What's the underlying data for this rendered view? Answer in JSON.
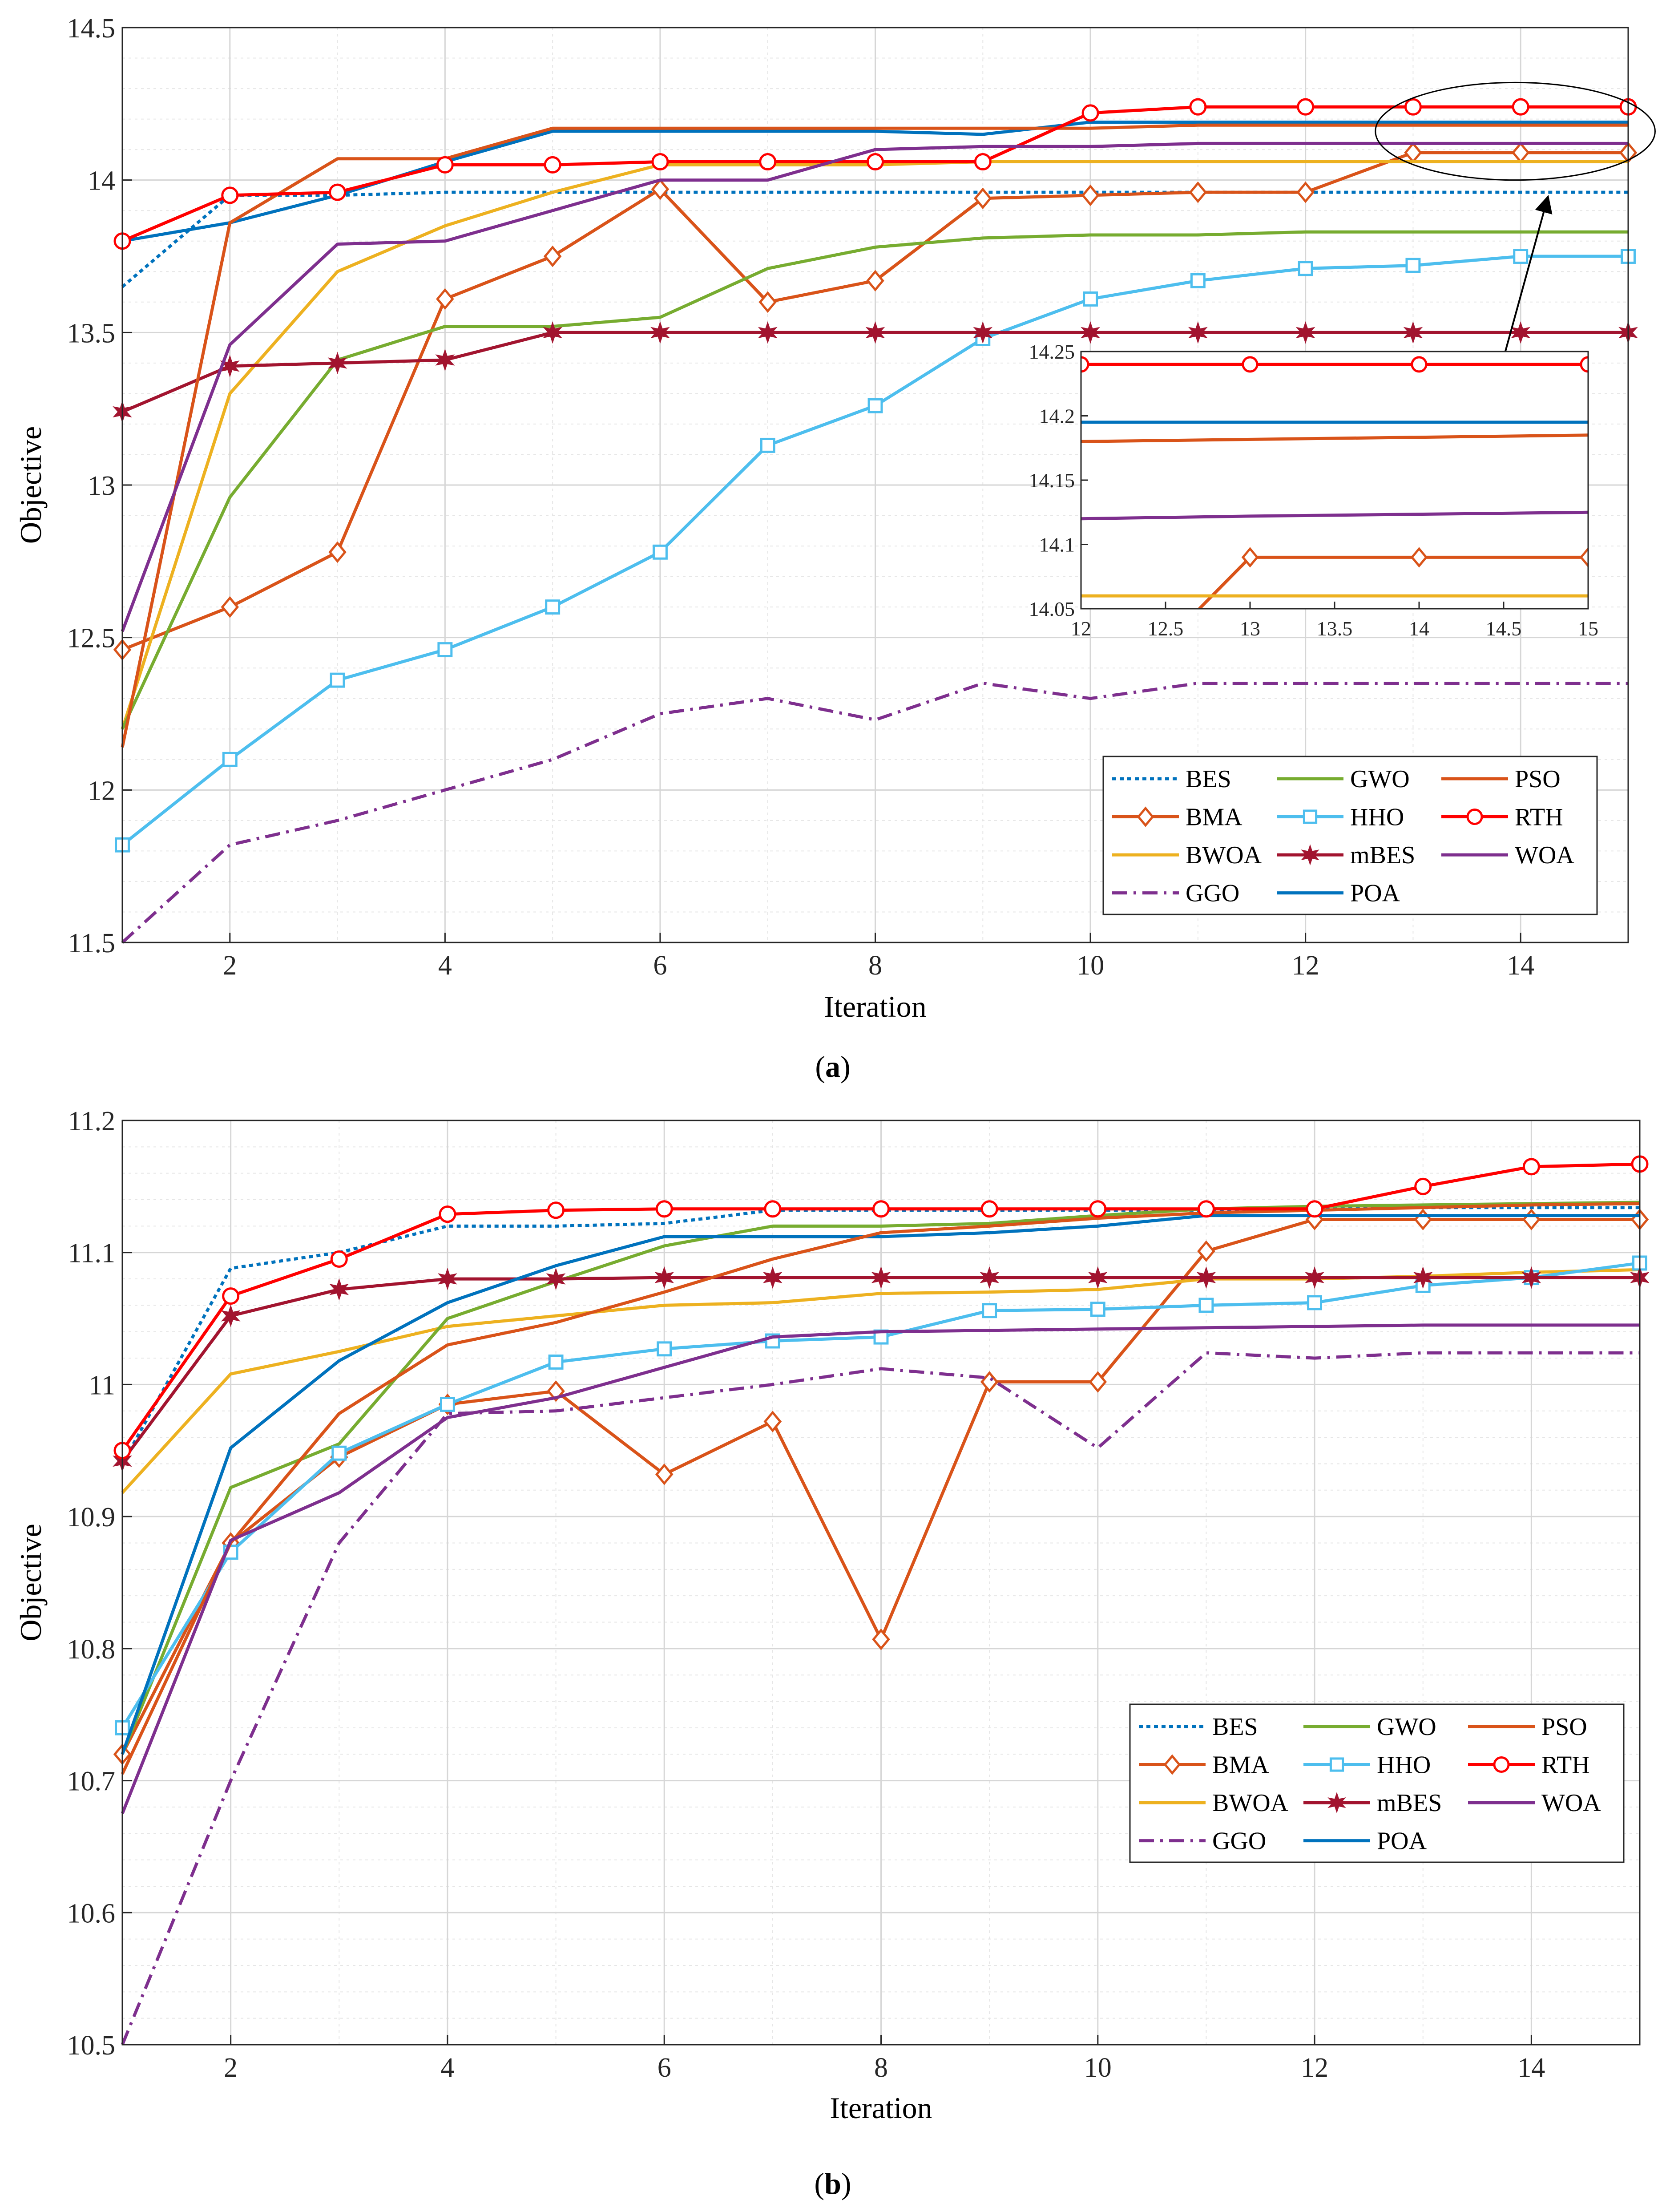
{
  "chart_data": [
    {
      "type": "line",
      "id": "a",
      "caption_open": "(",
      "caption_letter": "a",
      "caption_close": ")",
      "xlabel": "Iteration",
      "ylabel": "Objective",
      "xlim": [
        1,
        15
      ],
      "ylim": [
        11.5,
        14.5
      ],
      "xticks": [
        2,
        4,
        6,
        8,
        10,
        12,
        14
      ],
      "yticks": [
        11.5,
        12,
        12.5,
        13,
        13.5,
        14,
        14.5
      ],
      "ytick_labels": [
        "11.5",
        "12",
        "12.5",
        "13",
        "13.5",
        "14",
        "14.5"
      ],
      "x": [
        1,
        2,
        3,
        4,
        5,
        6,
        7,
        8,
        9,
        10,
        11,
        12,
        13,
        14,
        15
      ],
      "series": [
        {
          "name": "BES",
          "color": "#0072BD",
          "dash": "dot",
          "marker": "none",
          "values": [
            13.65,
            13.95,
            13.95,
            13.96,
            13.96,
            13.96,
            13.96,
            13.96,
            13.96,
            13.96,
            13.96,
            13.96,
            13.96,
            13.96,
            13.96
          ]
        },
        {
          "name": "BMA",
          "color": "#D95319",
          "dash": "solid",
          "marker": "diamond",
          "values": [
            12.46,
            12.6,
            12.78,
            13.61,
            13.75,
            13.97,
            13.6,
            13.67,
            13.94,
            13.95,
            13.96,
            13.96,
            14.09,
            14.09,
            14.09
          ]
        },
        {
          "name": "BWOA",
          "color": "#EDB120",
          "dash": "solid",
          "marker": "none",
          "values": [
            12.2,
            13.3,
            13.7,
            13.85,
            13.96,
            14.05,
            14.05,
            14.05,
            14.06,
            14.06,
            14.06,
            14.06,
            14.06,
            14.06,
            14.06
          ]
        },
        {
          "name": "GGO",
          "color": "#7E2F8E",
          "dash": "dashdot",
          "marker": "none",
          "values": [
            11.5,
            11.82,
            11.9,
            12.0,
            12.1,
            12.25,
            12.3,
            12.23,
            12.35,
            12.3,
            12.35,
            12.35,
            12.35,
            12.35,
            12.35
          ]
        },
        {
          "name": "GWO",
          "color": "#77AC30",
          "dash": "solid",
          "marker": "none",
          "values": [
            12.2,
            12.96,
            13.41,
            13.52,
            13.52,
            13.55,
            13.71,
            13.78,
            13.81,
            13.82,
            13.82,
            13.83,
            13.83,
            13.83,
            13.83
          ]
        },
        {
          "name": "HHO",
          "color": "#4DBEEE",
          "dash": "solid",
          "marker": "square",
          "values": [
            11.82,
            12.1,
            12.36,
            12.46,
            12.6,
            12.78,
            13.13,
            13.26,
            13.48,
            13.61,
            13.67,
            13.71,
            13.72,
            13.75,
            13.75
          ]
        },
        {
          "name": "mBES",
          "color": "#A2142F",
          "dash": "solid",
          "marker": "star",
          "values": [
            13.24,
            13.39,
            13.4,
            13.41,
            13.5,
            13.5,
            13.5,
            13.5,
            13.5,
            13.5,
            13.5,
            13.5,
            13.5,
            13.5,
            13.5
          ]
        },
        {
          "name": "POA",
          "color": "#0072BD",
          "dash": "solid",
          "marker": "none",
          "values": [
            13.8,
            13.86,
            13.95,
            14.06,
            14.16,
            14.16,
            14.16,
            14.16,
            14.15,
            14.19,
            14.19,
            14.19,
            14.19,
            14.19,
            14.19
          ]
        },
        {
          "name": "PSO",
          "color": "#D95319",
          "dash": "solid",
          "marker": "none",
          "values": [
            12.14,
            13.86,
            14.07,
            14.07,
            14.17,
            14.17,
            14.17,
            14.17,
            14.17,
            14.17,
            14.18,
            14.18,
            14.18,
            14.18,
            14.18
          ]
        },
        {
          "name": "RTH",
          "color": "#FF0000",
          "dash": "solid",
          "marker": "circle",
          "values": [
            13.8,
            13.95,
            13.96,
            14.05,
            14.05,
            14.06,
            14.06,
            14.06,
            14.06,
            14.22,
            14.24,
            14.24,
            14.24,
            14.24,
            14.24
          ]
        },
        {
          "name": "WOA",
          "color": "#7E2F8E",
          "dash": "solid",
          "marker": "none",
          "values": [
            12.52,
            13.46,
            13.79,
            13.8,
            13.9,
            14.0,
            14.0,
            14.1,
            14.11,
            14.11,
            14.12,
            14.12,
            14.12,
            14.12,
            14.12
          ]
        }
      ],
      "legend": {
        "location": "bottom-right",
        "columns": 3,
        "order": [
          "BES",
          "GWO",
          "PSO",
          "BMA",
          "HHO",
          "RTH",
          "BWOA",
          "mBES",
          "WOA",
          "GGO",
          "POA"
        ]
      },
      "inset": {
        "xlim": [
          12,
          15
        ],
        "ylim": [
          14.05,
          14.25
        ],
        "xticks": [
          12,
          12.5,
          13,
          13.5,
          14,
          14.5,
          15
        ],
        "xtick_labels": [
          "12",
          "12.5",
          "13",
          "13.5",
          "14",
          "14.5",
          "15"
        ],
        "yticks": [
          14.05,
          14.1,
          14.15,
          14.2,
          14.25
        ],
        "ytick_labels": [
          "14.05",
          "14.1",
          "14.15",
          "14.2",
          "14.25"
        ],
        "series": [
          {
            "name": "RTH",
            "color": "#FF0000",
            "marker": "circle",
            "x": [
              12,
              13,
              14,
              15
            ],
            "values": [
              14.24,
              14.24,
              14.24,
              14.24
            ]
          },
          {
            "name": "POA",
            "color": "#0072BD",
            "marker": "none",
            "x": [
              12,
              15
            ],
            "values": [
              14.195,
              14.195
            ]
          },
          {
            "name": "PSO",
            "color": "#D95319",
            "marker": "none",
            "x": [
              12,
              15
            ],
            "values": [
              14.18,
              14.185
            ]
          },
          {
            "name": "WOA",
            "color": "#7E2F8E",
            "marker": "none",
            "x": [
              12,
              13,
              15
            ],
            "values": [
              14.12,
              14.122,
              14.125
            ]
          },
          {
            "name": "BMA",
            "color": "#D95319",
            "marker": "diamond",
            "x": [
              12.7,
              13,
              14,
              15
            ],
            "values": [
              14.05,
              14.09,
              14.09,
              14.09
            ]
          },
          {
            "name": "BWOA",
            "color": "#EDB120",
            "marker": "none",
            "x": [
              12,
              15
            ],
            "values": [
              14.06,
              14.06
            ]
          }
        ]
      }
    },
    {
      "type": "line",
      "id": "b",
      "caption_open": "(",
      "caption_letter": "b",
      "caption_close": ")",
      "xlabel": "Iteration",
      "ylabel": "Objective",
      "xlim": [
        1,
        15
      ],
      "ylim": [
        10.5,
        11.2
      ],
      "xticks": [
        2,
        4,
        6,
        8,
        10,
        12,
        14
      ],
      "yticks": [
        10.5,
        10.6,
        10.7,
        10.8,
        10.9,
        11,
        11.1,
        11.2
      ],
      "ytick_labels": [
        "10.5",
        "10.6",
        "10.7",
        "10.8",
        "10.9",
        "11",
        "11.1",
        "11.2"
      ],
      "x": [
        1,
        2,
        3,
        4,
        5,
        6,
        7,
        8,
        9,
        10,
        11,
        12,
        13,
        14,
        15
      ],
      "series": [
        {
          "name": "BES",
          "color": "#0072BD",
          "dash": "dot",
          "marker": "none",
          "values": [
            10.94,
            11.088,
            11.1,
            11.12,
            11.12,
            11.122,
            11.132,
            11.132,
            11.132,
            11.132,
            11.132,
            11.134,
            11.134,
            11.134,
            11.134
          ]
        },
        {
          "name": "BMA",
          "color": "#D95319",
          "dash": "solid",
          "marker": "diamond",
          "values": [
            10.72,
            10.88,
            10.945,
            10.985,
            10.995,
            10.932,
            10.972,
            10.807,
            11.002,
            11.002,
            11.101,
            11.125,
            11.125,
            11.125,
            11.125
          ]
        },
        {
          "name": "BWOA",
          "color": "#EDB120",
          "dash": "solid",
          "marker": "none",
          "values": [
            10.918,
            11.008,
            11.025,
            11.044,
            11.052,
            11.06,
            11.062,
            11.069,
            11.07,
            11.072,
            11.08,
            11.08,
            11.082,
            11.085,
            11.087
          ]
        },
        {
          "name": "GGO",
          "color": "#7E2F8E",
          "dash": "dashdot",
          "marker": "none",
          "values": [
            10.5,
            10.7,
            10.88,
            10.978,
            10.98,
            10.99,
            11.0,
            11.012,
            11.005,
            10.952,
            11.024,
            11.02,
            11.024,
            11.024,
            11.024
          ]
        },
        {
          "name": "GWO",
          "color": "#77AC30",
          "dash": "solid",
          "marker": "none",
          "values": [
            10.72,
            10.922,
            10.955,
            11.05,
            11.078,
            11.105,
            11.12,
            11.12,
            11.122,
            11.128,
            11.133,
            11.135,
            11.136,
            11.137,
            11.138
          ]
        },
        {
          "name": "HHO",
          "color": "#4DBEEE",
          "dash": "solid",
          "marker": "square",
          "values": [
            10.74,
            10.873,
            10.948,
            10.985,
            11.017,
            11.027,
            11.033,
            11.036,
            11.056,
            11.057,
            11.06,
            11.062,
            11.075,
            11.081,
            11.092
          ]
        },
        {
          "name": "mBES",
          "color": "#A2142F",
          "dash": "solid",
          "marker": "star",
          "values": [
            10.942,
            11.052,
            11.072,
            11.08,
            11.08,
            11.081,
            11.081,
            11.081,
            11.081,
            11.081,
            11.081,
            11.081,
            11.081,
            11.081,
            11.081
          ]
        },
        {
          "name": "POA",
          "color": "#0072BD",
          "dash": "solid",
          "marker": "none",
          "values": [
            10.72,
            10.952,
            11.018,
            11.062,
            11.09,
            11.112,
            11.112,
            11.112,
            11.115,
            11.12,
            11.128,
            11.128,
            11.128,
            11.128,
            11.128
          ]
        },
        {
          "name": "PSO",
          "color": "#D95319",
          "dash": "solid",
          "marker": "none",
          "values": [
            10.705,
            10.88,
            10.978,
            11.03,
            11.047,
            11.07,
            11.095,
            11.115,
            11.12,
            11.126,
            11.13,
            11.132,
            11.134,
            11.136,
            11.137
          ]
        },
        {
          "name": "RTH",
          "color": "#FF0000",
          "dash": "solid",
          "marker": "circle",
          "values": [
            10.95,
            11.067,
            11.095,
            11.129,
            11.132,
            11.133,
            11.133,
            11.133,
            11.133,
            11.133,
            11.133,
            11.133,
            11.15,
            11.165,
            11.167
          ]
        },
        {
          "name": "WOA",
          "color": "#7E2F8E",
          "dash": "solid",
          "marker": "none",
          "values": [
            10.675,
            10.882,
            10.918,
            10.975,
            10.99,
            11.013,
            11.036,
            11.04,
            11.041,
            11.042,
            11.043,
            11.044,
            11.045,
            11.045,
            11.045
          ]
        }
      ],
      "legend": {
        "location": "bottom-right",
        "columns": 3,
        "order": [
          "BES",
          "GWO",
          "PSO",
          "BMA",
          "HHO",
          "RTH",
          "BWOA",
          "mBES",
          "WOA",
          "GGO",
          "POA"
        ]
      }
    }
  ]
}
